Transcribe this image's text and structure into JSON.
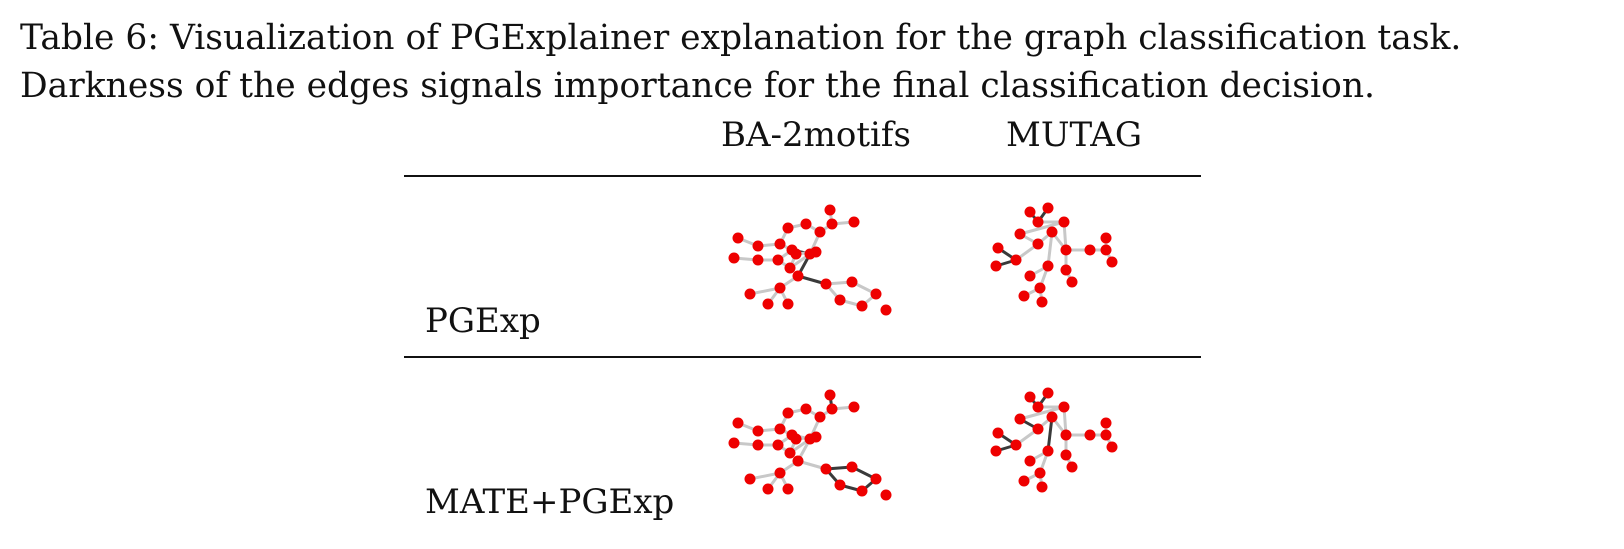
{
  "caption": "Table 6: Visualization of PGExplainer explanation for the graph classification task. Darkness of the edges signals importance for the final classification decision.",
  "table": {
    "columns": [
      "BA-2motifs",
      "MUTAG"
    ],
    "rows": [
      {
        "label": "PGExp"
      },
      {
        "label": "MATE+PGExp"
      }
    ]
  },
  "colors": {
    "node": "#ee0000",
    "edge_light": "#c8c8c8",
    "edge_dark": "#3a3a3a",
    "text": "#111111"
  }
}
